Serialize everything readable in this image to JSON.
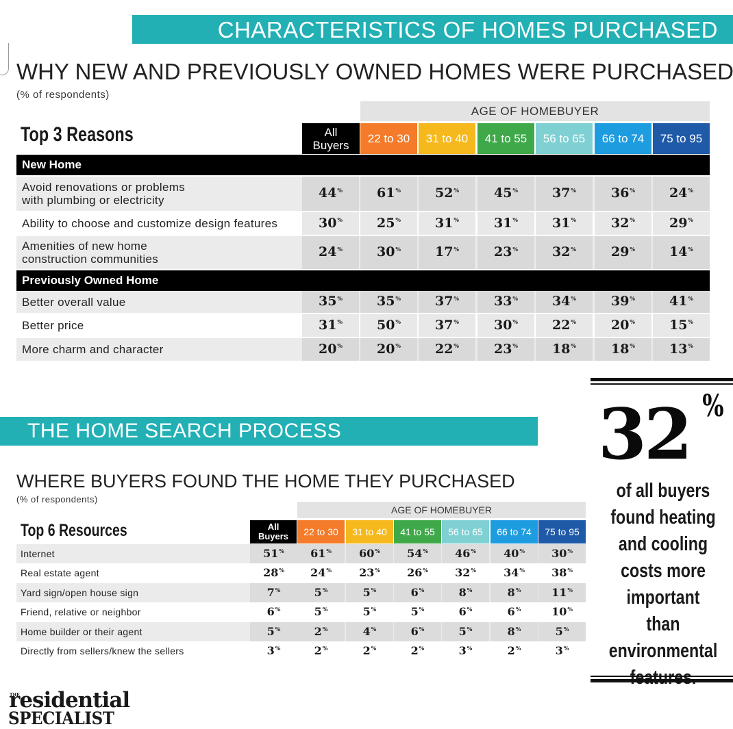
{
  "section1": {
    "banner": "CHARACTERISTICS OF HOMES PURCHASED",
    "title": "WHY NEW AND PREVIOUSLY OWNED HOMES WERE PURCHASED",
    "subtitle": "(% of respondents)",
    "age_header": "AGE OF HOMEBUYER",
    "top_label": "Top 3 Reasons",
    "all_buyers_line1": "All",
    "all_buyers_line2": "Buyers",
    "age_columns": [
      {
        "label": "22 to 30",
        "color": "#f47b2a"
      },
      {
        "label": "31 to 40",
        "color": "#f5b91d"
      },
      {
        "label": "41 to 55",
        "color": "#3fa94a"
      },
      {
        "label": "56 to 65",
        "color": "#7fd0d3"
      },
      {
        "label": "66 to 74",
        "color": "#1e9ce0"
      },
      {
        "label": "75 to 95",
        "color": "#1f5aa8"
      }
    ],
    "groups": [
      {
        "name": "New Home",
        "rows": [
          {
            "label_line1": "Avoid renovations or problems",
            "label_line2": "with plumbing or electricity",
            "values": [
              "44",
              "61",
              "52",
              "45",
              "37",
              "36",
              "24"
            ]
          },
          {
            "label_line1": "Ability to choose and customize design features",
            "label_line2": "",
            "values": [
              "30",
              "25",
              "31",
              "31",
              "31",
              "32",
              "29"
            ]
          },
          {
            "label_line1": "Amenities of new home",
            "label_line2": "construction communities",
            "values": [
              "24",
              "30",
              "17",
              "23",
              "32",
              "29",
              "14"
            ]
          }
        ]
      },
      {
        "name": "Previously Owned Home",
        "rows": [
          {
            "label_line1": "Better overall value",
            "label_line2": "",
            "values": [
              "35",
              "35",
              "37",
              "33",
              "34",
              "39",
              "41"
            ]
          },
          {
            "label_line1": "Better price",
            "label_line2": "",
            "values": [
              "31",
              "50",
              "37",
              "30",
              "22",
              "20",
              "15"
            ]
          },
          {
            "label_line1": "More charm and character",
            "label_line2": "",
            "values": [
              "20",
              "20",
              "22",
              "23",
              "18",
              "18",
              "13"
            ]
          }
        ]
      }
    ]
  },
  "section2": {
    "banner": "THE HOME SEARCH PROCESS",
    "title": "WHERE BUYERS FOUND THE HOME THEY PURCHASED",
    "subtitle": "(% of respondents)",
    "age_header": "AGE OF HOMEBUYER",
    "top_label": "Top 6 Resources",
    "all_buyers_line1": "All",
    "all_buyers_line2": "Buyers",
    "rows": [
      {
        "label": "Internet",
        "values": [
          "51",
          "61",
          "60",
          "54",
          "46",
          "40",
          "30"
        ]
      },
      {
        "label": "Real estate agent",
        "values": [
          "28",
          "24",
          "23",
          "26",
          "32",
          "34",
          "38"
        ]
      },
      {
        "label": "Yard sign/open house sign",
        "values": [
          "7",
          "5",
          "5",
          "6",
          "8",
          "8",
          "11"
        ]
      },
      {
        "label": "Friend, relative or neighbor",
        "values": [
          "6",
          "5",
          "5",
          "5",
          "6",
          "6",
          "10"
        ]
      },
      {
        "label": "Home builder or their agent",
        "values": [
          "5",
          "2",
          "4",
          "6",
          "5",
          "8",
          "5"
        ]
      },
      {
        "label": "Directly from sellers/knew the sellers",
        "values": [
          "3",
          "2",
          "2",
          "2",
          "3",
          "2",
          "3"
        ]
      }
    ]
  },
  "percent_symbol": "%",
  "callout": {
    "stat": "32",
    "symbol": "%",
    "text": "of all buyers found heating and cooling costs more important than environmental features."
  },
  "logo": {
    "the": "THE",
    "line1": "residential",
    "line2": "SPECIALIST"
  }
}
